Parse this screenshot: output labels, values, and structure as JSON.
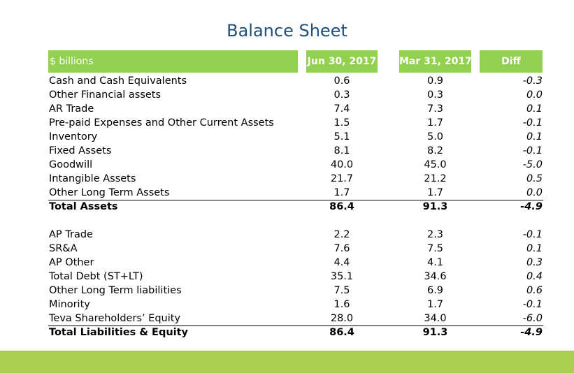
{
  "title": "Balance Sheet",
  "header": {
    "label": "$ billions",
    "col1": "Jun 30, 2017",
    "col2": "Mar 31, 2017",
    "col3": "Diff"
  },
  "assets": [
    {
      "label": "Cash and Cash Equivalents",
      "jun": "0.6",
      "mar": "0.9",
      "diff": "-0.3"
    },
    {
      "label": "Other Financial assets",
      "jun": "0.3",
      "mar": "0.3",
      "diff": "0.0"
    },
    {
      "label": "AR Trade",
      "jun": "7.4",
      "mar": "7.3",
      "diff": "0.1"
    },
    {
      "label": "Pre-paid Expenses and Other Current Assets",
      "jun": "1.5",
      "mar": "1.7",
      "diff": "-0.1"
    },
    {
      "label": "Inventory",
      "jun": "5.1",
      "mar": "5.0",
      "diff": "0.1"
    },
    {
      "label": "Fixed Assets",
      "jun": "8.1",
      "mar": "8.2",
      "diff": "-0.1"
    },
    {
      "label": "Goodwill",
      "jun": "40.0",
      "mar": "45.0",
      "diff": "-5.0"
    },
    {
      "label": "Intangible Assets",
      "jun": "21.7",
      "mar": "21.2",
      "diff": "0.5"
    },
    {
      "label": "Other Long Term Assets",
      "jun": "1.7",
      "mar": "1.7",
      "diff": "0.0"
    }
  ],
  "total_assets": {
    "label": "Total Assets",
    "jun": "86.4",
    "mar": "91.3",
    "diff": "-4.9"
  },
  "liabilities": [
    {
      "label": "AP Trade",
      "jun": "2.2",
      "mar": "2.3",
      "diff": "-0.1"
    },
    {
      "label": "SR&A",
      "jun": "7.6",
      "mar": "7.5",
      "diff": "0.1"
    },
    {
      "label": "AP Other",
      "jun": "4.4",
      "mar": "4.1",
      "diff": "0.3"
    },
    {
      "label": "Total Debt (ST+LT)",
      "jun": "35.1",
      "mar": "34.6",
      "diff": "0.4"
    },
    {
      "label": "Other Long Term liabilities",
      "jun": "7.5",
      "mar": "6.9",
      "diff": "0.6"
    },
    {
      "label": "Minority",
      "jun": "1.6",
      "mar": "1.7",
      "diff": "-0.1"
    },
    {
      "label": "Teva Shareholders’ Equity",
      "jun": "28.0",
      "mar": "34.0",
      "diff": "-6.0"
    }
  ],
  "total_liabilities": {
    "label": "Total Liabilities & Equity",
    "jun": "86.4",
    "mar": "91.3",
    "diff": "-4.9"
  },
  "colors": {
    "header_bg": "#92d050",
    "title": "#1f4e79",
    "footer_bar": "#a9d04f"
  }
}
